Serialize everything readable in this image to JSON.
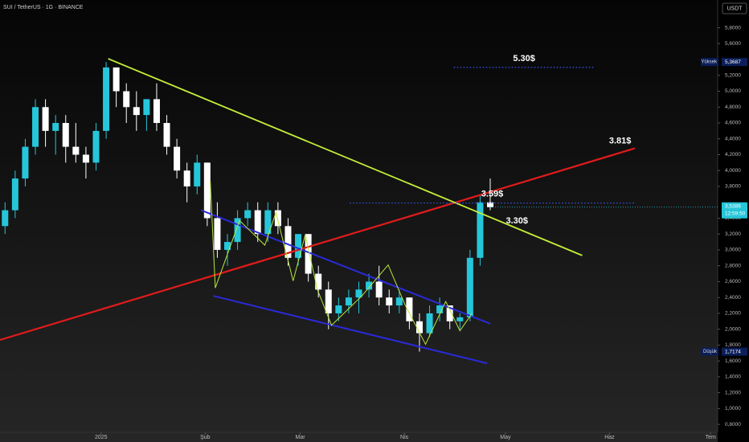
{
  "chart_data": {
    "type": "candlestick",
    "title": "SUI / TetherUS · 1G · BINANCE",
    "currency": "USDT",
    "up_color": "#26c6da",
    "down_color": "#ffffff",
    "xlim": [
      -0.5,
      70.5
    ],
    "ylim": [
      0.7,
      6.15
    ],
    "xticks": [
      {
        "value": 9.5,
        "label": "2025"
      },
      {
        "value": 19.8,
        "label": "Şub"
      },
      {
        "value": 29.2,
        "label": "Mar"
      },
      {
        "value": 39.5,
        "label": "Nis"
      },
      {
        "value": 49.5,
        "label": "May"
      },
      {
        "value": 59.8,
        "label": "Haz"
      },
      {
        "value": 69.8,
        "label": "Tem"
      }
    ],
    "yticks": [
      {
        "value": 0.8,
        "label": "0,8000"
      },
      {
        "value": 1.0,
        "label": "1,0000"
      },
      {
        "value": 1.2,
        "label": "1,2000"
      },
      {
        "value": 1.4,
        "label": "1,4000"
      },
      {
        "value": 1.6,
        "label": "1,6000"
      },
      {
        "value": 1.8,
        "label": "1,8000"
      },
      {
        "value": 2.0,
        "label": "2,0000"
      },
      {
        "value": 2.2,
        "label": "2,2000"
      },
      {
        "value": 2.4,
        "label": "2,4000"
      },
      {
        "value": 2.6,
        "label": "2,6000"
      },
      {
        "value": 2.8,
        "label": "2,8000"
      },
      {
        "value": 3.0,
        "label": "3,0000"
      },
      {
        "value": 3.2,
        "label": "3,2000"
      },
      {
        "value": 3.4,
        "label": "3,4000"
      },
      {
        "value": 3.8,
        "label": "3,8000"
      },
      {
        "value": 4.0,
        "label": "4,0000"
      },
      {
        "value": 4.2,
        "label": "4,2000"
      },
      {
        "value": 4.4,
        "label": "4,4000"
      },
      {
        "value": 4.6,
        "label": "4,6000"
      },
      {
        "value": 4.8,
        "label": "4,8000"
      },
      {
        "value": 5.0,
        "label": "5,0000"
      },
      {
        "value": 5.2,
        "label": "5,2000"
      },
      {
        "value": 5.6,
        "label": "5,6000"
      },
      {
        "value": 5.8,
        "label": "5,8000"
      }
    ],
    "open": [
      3.3,
      3.5,
      3.9,
      4.3,
      4.8,
      4.5,
      4.6,
      4.3,
      4.2,
      4.1,
      4.5,
      5.3,
      5.0,
      4.8,
      4.7,
      4.9,
      4.6,
      4.3,
      4.0,
      3.8,
      4.1,
      3.4,
      3.0,
      3.1,
      3.4,
      3.5,
      3.2,
      3.5,
      3.3,
      2.9,
      3.2,
      2.7,
      2.5,
      2.2,
      2.3,
      2.4,
      2.5,
      2.6,
      2.4,
      2.3,
      2.4,
      2.1,
      1.95,
      2.2,
      2.3,
      2.1,
      2.15,
      2.9,
      3.6
    ],
    "high": [
      3.6,
      4.0,
      4.4,
      4.9,
      4.9,
      4.7,
      4.7,
      4.6,
      4.3,
      4.6,
      5.3687,
      5.3,
      5.1,
      5.0,
      4.9,
      5.1,
      4.7,
      4.4,
      4.1,
      4.2,
      4.1,
      3.6,
      3.2,
      3.5,
      3.6,
      3.6,
      3.6,
      3.6,
      3.4,
      3.2,
      3.2,
      2.8,
      2.6,
      2.4,
      2.5,
      2.6,
      2.7,
      2.8,
      2.5,
      2.5,
      2.4,
      2.2,
      2.3,
      2.4,
      2.3,
      2.2,
      3.0,
      3.7,
      3.9
    ],
    "low": [
      3.2,
      3.4,
      3.8,
      4.2,
      4.3,
      4.2,
      4.1,
      4.1,
      3.9,
      4.0,
      4.4,
      4.8,
      4.6,
      4.5,
      4.5,
      4.5,
      4.2,
      3.9,
      3.6,
      3.7,
      3.3,
      2.9,
      2.8,
      3.0,
      3.3,
      3.1,
      3.1,
      3.2,
      2.8,
      2.8,
      2.6,
      2.4,
      2.0,
      2.1,
      2.2,
      2.2,
      2.4,
      2.3,
      2.2,
      2.2,
      2.0,
      1.7174,
      1.9,
      2.1,
      2.0,
      2.0,
      2.1,
      2.8,
      3.5
    ],
    "close": [
      3.5,
      3.9,
      4.3,
      4.8,
      4.5,
      4.6,
      4.3,
      4.2,
      4.1,
      4.5,
      5.3,
      5.0,
      4.8,
      4.7,
      4.9,
      4.6,
      4.3,
      4.0,
      3.8,
      4.1,
      3.4,
      3.0,
      3.1,
      3.4,
      3.5,
      3.2,
      3.5,
      3.3,
      2.9,
      3.2,
      2.7,
      2.5,
      2.2,
      2.3,
      2.4,
      2.5,
      2.6,
      2.4,
      2.3,
      2.4,
      2.1,
      1.95,
      2.2,
      2.3,
      2.1,
      2.15,
      2.9,
      3.6,
      3.5386
    ],
    "high_marker": {
      "label": "Yüksek",
      "value": 5.3687,
      "value_label": "5,3687"
    },
    "low_marker": {
      "label": "Düşük",
      "value": 1.7174,
      "value_label": "1,7174"
    },
    "last_price": {
      "value": 3.5386,
      "value_label": "3,5386",
      "countdown": "12:59:50"
    },
    "lines": [
      {
        "color": "#e31b1b",
        "width": 2.2,
        "label": "3.81$",
        "x": [
          -0.5,
          62.3
        ],
        "y": [
          1.865,
          4.28
        ]
      },
      {
        "color": "#c6ef3a",
        "width": 1.8,
        "label": "3.30$",
        "x": [
          10.2,
          57.1
        ],
        "y": [
          5.41,
          2.93
        ]
      },
      {
        "color": "#2a2ad8",
        "width": 2,
        "x": [
          19.4,
          48.0
        ],
        "y": [
          3.5,
          2.07
        ]
      },
      {
        "color": "#2a2ad8",
        "width": 2,
        "x": [
          20.6,
          47.7
        ],
        "y": [
          2.42,
          1.57
        ]
      },
      {
        "color": "#b8e83a",
        "width": 1,
        "x": [
          20.3,
          20.8,
          23.2,
          25.7,
          26.8,
          28.5,
          29.7,
          30.9,
          32.3,
          35.3,
          37.9,
          39.6,
          41.6,
          43.6,
          45.0,
          46.2
        ],
        "y": [
          3.87,
          2.52,
          3.37,
          3.06,
          3.47,
          2.61,
          3.19,
          2.5,
          2.05,
          2.42,
          2.81,
          2.3,
          1.81,
          2.35,
          1.98,
          2.2
        ]
      }
    ],
    "levels": [
      {
        "label": "5.30$",
        "value": 5.3,
        "x": [
          44.4,
          58.3
        ],
        "color": "#3a5bff"
      },
      {
        "label": "3.59$",
        "value": 3.59,
        "x": [
          34.1,
          62.3
        ],
        "color": "#3a5bff"
      }
    ]
  }
}
